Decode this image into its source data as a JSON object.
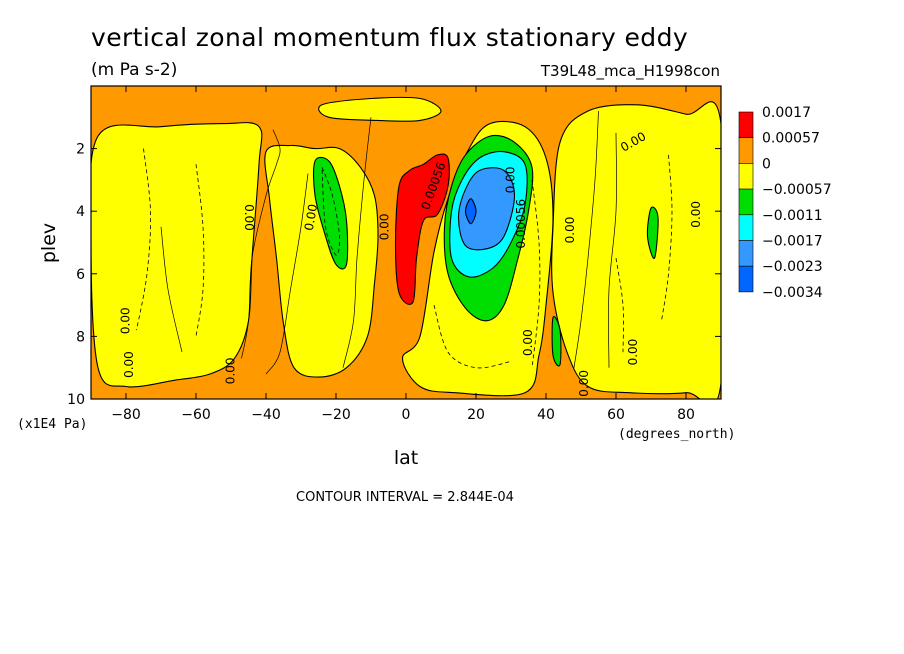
{
  "chart_data": {
    "type": "heatmap",
    "title": "vertical zonal momentum flux stationary eddy",
    "units": "(m Pa s-2)",
    "case_label": "T39L48_mca_H1998con",
    "xlabel": "lat",
    "xunits": "(degrees_north)",
    "ylabel": "plev",
    "yunits": "(x1E4 Pa)",
    "xlim": [
      -90,
      90
    ],
    "ylim": [
      10,
      0
    ],
    "y_reversed": true,
    "x_ticks": [
      -80,
      -60,
      -40,
      -20,
      0,
      20,
      40,
      60,
      80
    ],
    "x_tick_labels": [
      "−80",
      "−60",
      "−40",
      "−20",
      "0",
      "20",
      "40",
      "60",
      "80"
    ],
    "y_ticks": [
      2,
      4,
      6,
      8,
      10
    ],
    "y_tick_labels": [
      "2",
      "4",
      "6",
      "8",
      "10"
    ],
    "contour_interval_text": "CONTOUR INTERVAL = 2.844E-04",
    "colorbar": {
      "levels": [
        "0.0017",
        "0.00057",
        "0",
        "−0.00057",
        "−0.0011",
        "−0.0017",
        "−0.0023",
        "−0.0034"
      ],
      "colors": [
        "#ff0000",
        "#ff9900",
        "#ffff00",
        "#00dd00",
        "#00ffff",
        "#3399ff",
        "#0066ff"
      ]
    },
    "contour_labels": [
      {
        "text": "0.00",
        "lat": 65,
        "plev": 1.8,
        "angle": -30
      },
      {
        "text": "0.00",
        "lat": -45,
        "plev": 4.2,
        "angle": 90
      },
      {
        "text": "0.00",
        "lat": -27,
        "plev": 4.2,
        "angle": -80
      },
      {
        "text": "0.00",
        "lat": -6,
        "plev": 4.5,
        "angle": -90
      },
      {
        "text": "0.00",
        "lat": -80,
        "plev": 7.5,
        "angle": -90
      },
      {
        "text": "0.00",
        "lat": -79,
        "plev": 8.9,
        "angle": -90
      },
      {
        "text": "0.00",
        "lat": -50,
        "plev": 9.1,
        "angle": -90
      },
      {
        "text": "0.00",
        "lat": 47,
        "plev": 4.6,
        "angle": -90
      },
      {
        "text": "0.00",
        "lat": 83,
        "plev": 4.1,
        "angle": -90
      },
      {
        "text": "0.00",
        "lat": 35,
        "plev": 8.2,
        "angle": -90
      },
      {
        "text": "0.00",
        "lat": 51,
        "plev": 9.5,
        "angle": -90
      },
      {
        "text": "0.00",
        "lat": 65,
        "plev": 8.5,
        "angle": -90
      },
      {
        "text": "0.00",
        "lat": 30,
        "plev": 3.0,
        "angle": -90
      },
      {
        "text": "0.00056",
        "lat": 33,
        "plev": 4.4,
        "angle": -90
      },
      {
        "text": "0.00056",
        "lat": 8,
        "plev": 3.2,
        "angle": -70
      }
    ],
    "regions": [
      {
        "value": 0.00057,
        "color": "#ff9900",
        "points": [
          [
            -90,
            0
          ],
          [
            90,
            0
          ],
          [
            90,
            10
          ],
          [
            -90,
            10
          ]
        ]
      },
      {
        "value": 0,
        "color": "#ffff00",
        "points": [
          [
            -88,
            1.6
          ],
          [
            -70,
            1.3
          ],
          [
            -52,
            1.2
          ],
          [
            -42,
            1.3
          ],
          [
            -42,
            2.5
          ],
          [
            -44,
            5.5
          ],
          [
            -45,
            7.5
          ],
          [
            -49,
            8.7
          ],
          [
            -56,
            9.2
          ],
          [
            -66,
            9.4
          ],
          [
            -80,
            9.6
          ],
          [
            -88,
            9.0
          ],
          [
            -90,
            5.0
          ]
        ]
      },
      {
        "value": 0,
        "color": "#ffff00",
        "points": [
          [
            -40,
            2.1
          ],
          [
            -33,
            1.9
          ],
          [
            -26,
            2.0
          ],
          [
            -19,
            2.0
          ],
          [
            -13,
            2.6
          ],
          [
            -9,
            3.5
          ],
          [
            -8,
            4.8
          ],
          [
            -9,
            6.3
          ],
          [
            -11,
            8.0
          ],
          [
            -17,
            9.0
          ],
          [
            -25,
            9.3
          ],
          [
            -32,
            9.0
          ],
          [
            -35,
            7.6
          ],
          [
            -37,
            5.5
          ],
          [
            -39,
            3.6
          ]
        ]
      },
      {
        "value": 0,
        "color": "#ffff00",
        "points": [
          [
            -24,
            0.6
          ],
          [
            -10,
            0.4
          ],
          [
            4,
            0.4
          ],
          [
            10,
            0.8
          ],
          [
            4,
            1.1
          ],
          [
            -8,
            1.1
          ],
          [
            -22,
            1.0
          ]
        ]
      },
      {
        "value": 0,
        "color": "#ffff00",
        "points": [
          [
            44,
            1.8
          ],
          [
            52,
            0.8
          ],
          [
            66,
            0.6
          ],
          [
            80,
            0.9
          ],
          [
            90,
            1.2
          ],
          [
            90,
            9.5
          ],
          [
            80,
            9.8
          ],
          [
            64,
            9.8
          ],
          [
            52,
            9.6
          ],
          [
            46,
            8.5
          ],
          [
            42,
            6.6
          ],
          [
            42,
            4.5
          ]
        ]
      },
      {
        "value": 0,
        "color": "#ffff00",
        "points": [
          [
            -1,
            8.7
          ],
          [
            4,
            8.0
          ],
          [
            8,
            5.3
          ],
          [
            12,
            3.6
          ],
          [
            18,
            2.0
          ],
          [
            24,
            1.2
          ],
          [
            34,
            1.3
          ],
          [
            40,
            2.3
          ],
          [
            42,
            4.2
          ],
          [
            40,
            7.0
          ],
          [
            38,
            8.6
          ],
          [
            34,
            9.8
          ],
          [
            14,
            9.8
          ],
          [
            4,
            9.6
          ]
        ]
      },
      {
        "value": -0.00057,
        "color": "#00dd00",
        "points": [
          [
            -26,
            2.4
          ],
          [
            -22,
            2.4
          ],
          [
            -19,
            3.2
          ],
          [
            -17,
            4.3
          ],
          [
            -17,
            5.7
          ],
          [
            -20,
            5.7
          ],
          [
            -23,
            4.8
          ],
          [
            -26,
            3.5
          ]
        ]
      },
      {
        "value": -0.00057,
        "color": "#00dd00",
        "points": [
          [
            11,
            4.5
          ],
          [
            13,
            3.2
          ],
          [
            17,
            2.2
          ],
          [
            24,
            1.6
          ],
          [
            31,
            1.8
          ],
          [
            36,
            2.6
          ],
          [
            35,
            4.0
          ],
          [
            32,
            5.5
          ],
          [
            28,
            7.0
          ],
          [
            23,
            7.5
          ],
          [
            17,
            7.1
          ],
          [
            12,
            6.0
          ]
        ]
      },
      {
        "value": -0.00057,
        "color": "#00dd00",
        "points": [
          [
            70,
            3.9
          ],
          [
            72,
            4.2
          ],
          [
            71,
            5.5
          ],
          [
            69,
            4.8
          ]
        ]
      },
      {
        "value": -0.00057,
        "color": "#00dd00",
        "points": [
          [
            42,
            7.4
          ],
          [
            44,
            7.8
          ],
          [
            44,
            8.9
          ],
          [
            42,
            8.6
          ]
        ]
      },
      {
        "value": -0.0011,
        "color": "#00ffff",
        "points": [
          [
            13,
            4.0
          ],
          [
            16,
            3.0
          ],
          [
            21,
            2.3
          ],
          [
            28,
            2.1
          ],
          [
            34,
            2.5
          ],
          [
            34,
            3.8
          ],
          [
            30,
            5.0
          ],
          [
            25,
            5.8
          ],
          [
            18,
            6.1
          ],
          [
            13,
            5.5
          ]
        ]
      },
      {
        "value": -0.0017,
        "color": "#3399ff",
        "points": [
          [
            15,
            4.2
          ],
          [
            17,
            3.3
          ],
          [
            21,
            2.7
          ],
          [
            28,
            2.7
          ],
          [
            31,
            3.5
          ],
          [
            28,
            4.8
          ],
          [
            23,
            5.2
          ],
          [
            17,
            5.1
          ]
        ]
      },
      {
        "value": -0.0023,
        "color": "#0066ff",
        "points": [
          [
            17,
            4.0
          ],
          [
            18.5,
            3.6
          ],
          [
            20,
            4.0
          ],
          [
            18.5,
            4.4
          ]
        ]
      },
      {
        "value": 0.0017,
        "color": "#ff0000",
        "points": [
          [
            -2,
            3.2
          ],
          [
            1,
            2.7
          ],
          [
            5,
            2.5
          ],
          [
            9,
            2.2
          ],
          [
            12,
            2.3
          ],
          [
            12,
            3.2
          ],
          [
            9,
            4.1
          ],
          [
            5,
            4.3
          ],
          [
            3,
            5.5
          ],
          [
            2,
            6.9
          ],
          [
            -2,
            6.6
          ],
          [
            -3,
            5.0
          ]
        ]
      }
    ],
    "solid_contours": [
      [
        [
          -38,
          1.4
        ],
        [
          -36,
          2.0
        ],
        [
          -37,
          2.5
        ],
        [
          -40,
          3.5
        ],
        [
          -44,
          5.5
        ],
        [
          -45,
          7.5
        ],
        [
          -47,
          8.7
        ]
      ],
      [
        [
          -28,
          2.8
        ],
        [
          -30,
          4.5
        ],
        [
          -33,
          6.5
        ],
        [
          -36,
          8.5
        ],
        [
          -40,
          9.2
        ]
      ],
      [
        [
          -10,
          1.0
        ],
        [
          -12,
          3.0
        ],
        [
          -14,
          5.5
        ],
        [
          -15,
          7.5
        ],
        [
          -18,
          9.0
        ]
      ],
      [
        [
          55,
          0.8
        ],
        [
          54,
          3.0
        ],
        [
          52,
          5.5
        ],
        [
          50,
          7.5
        ],
        [
          48,
          9.0
        ]
      ],
      [
        [
          60,
          1.5
        ],
        [
          60,
          4.0
        ],
        [
          58,
          6.5
        ],
        [
          58,
          9.0
        ]
      ],
      [
        [
          -70,
          4.5
        ],
        [
          -68,
          6.5
        ],
        [
          -64,
          8.5
        ]
      ]
    ],
    "dashed_contours": [
      [
        [
          -75,
          2.0
        ],
        [
          -73,
          4.0
        ],
        [
          -74,
          6.0
        ],
        [
          -77,
          7.8
        ]
      ],
      [
        [
          -60,
          2.5
        ],
        [
          -58,
          4.5
        ],
        [
          -58,
          6.5
        ],
        [
          -60,
          8.0
        ]
      ],
      [
        [
          -24,
          2.6
        ],
        [
          -21,
          3.5
        ],
        [
          -19,
          4.8
        ],
        [
          -20,
          5.4
        ],
        [
          -23,
          4.5
        ],
        [
          -24,
          2.6
        ]
      ],
      [
        [
          75,
          2.2
        ],
        [
          76,
          4.0
        ],
        [
          75,
          6.0
        ],
        [
          73,
          7.5
        ]
      ],
      [
        [
          60,
          5.5
        ],
        [
          62,
          7.0
        ],
        [
          62,
          8.5
        ]
      ],
      [
        [
          36,
          3.0
        ],
        [
          38,
          5.0
        ],
        [
          38,
          7.0
        ],
        [
          36,
          9.0
        ]
      ],
      [
        [
          8,
          7.0
        ],
        [
          12,
          8.5
        ],
        [
          20,
          9.0
        ],
        [
          30,
          8.8
        ]
      ]
    ]
  }
}
